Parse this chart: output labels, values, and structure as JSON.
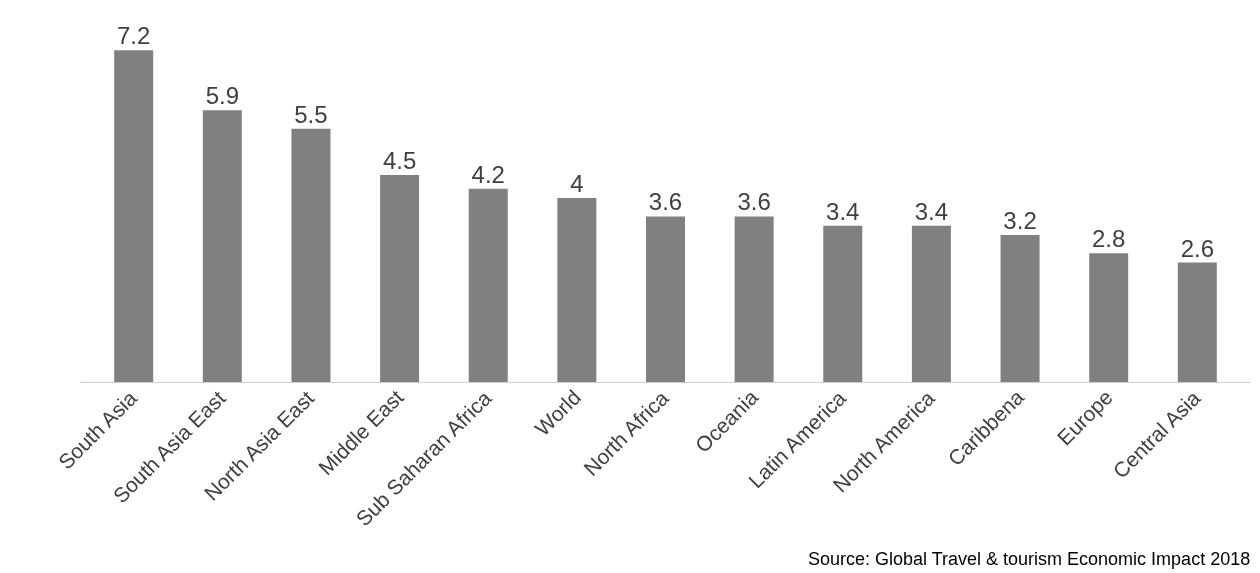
{
  "chart_data": {
    "type": "bar",
    "categories": [
      "South Asia",
      "South Asia East",
      "North Asia East",
      "Middle East",
      "Sub Saharan Africa",
      "World",
      "North Africa",
      "Oceania",
      "Latin America",
      "North America",
      "Caribbena",
      "Europe",
      "Central Asia"
    ],
    "values": [
      7.2,
      5.9,
      5.5,
      4.5,
      4.2,
      4,
      3.6,
      3.6,
      3.4,
      3.4,
      3.2,
      2.8,
      2.6
    ],
    "color": "#808080",
    "data_labels": true,
    "tick_labels": "x",
    "annotations": [
      "Source: Global Travel & tourism Economic Impact 2018"
    ]
  }
}
